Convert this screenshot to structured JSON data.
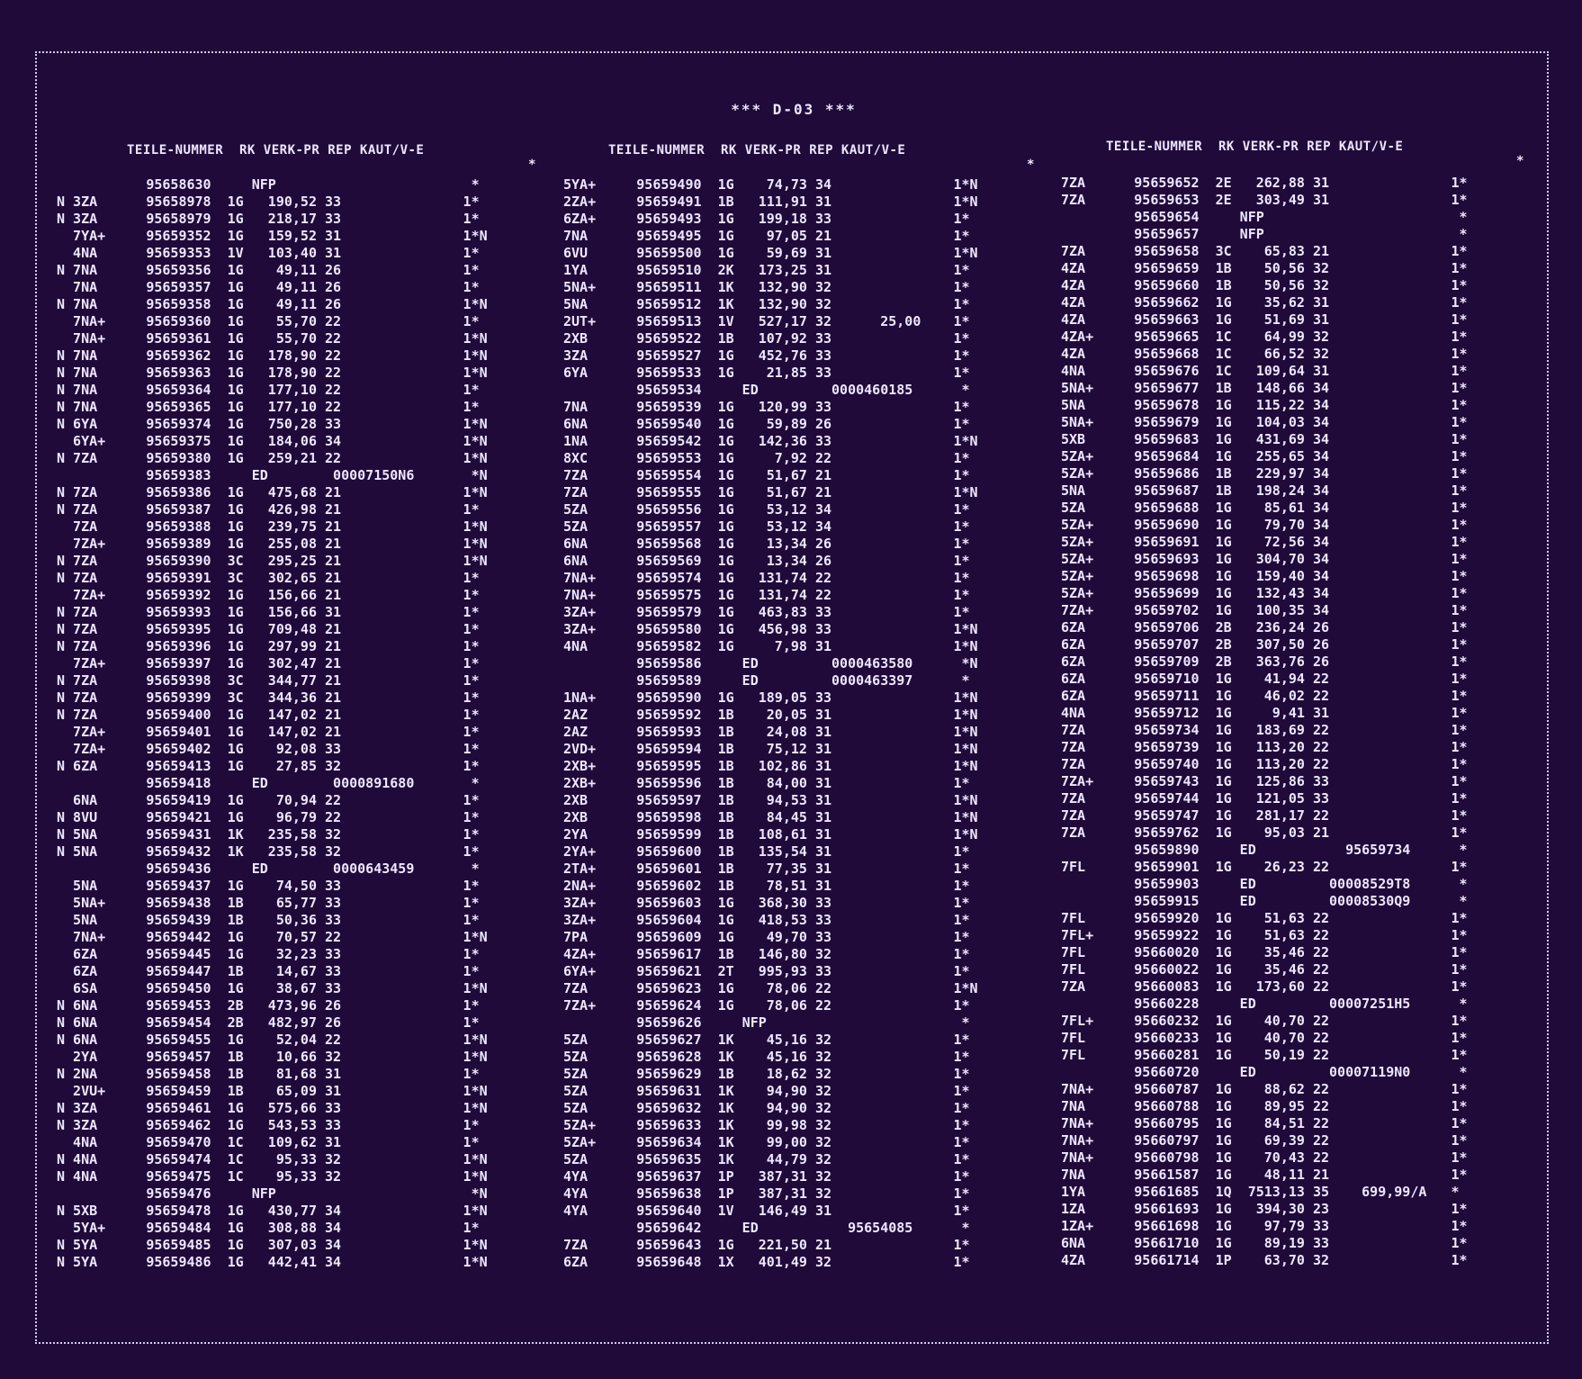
{
  "title": "*** D-03 ***",
  "columns": [
    {
      "header": "TEILE-NUMMER  RK VERK-PR REP KAUT/V-E",
      "header_star": "*",
      "rows": [
        "           95658630     NFP                        *",
        "N 3ZA      95658978  1G   190,52 33               1*",
        "N 3ZA      95658979  1G   218,17 33               1*",
        "  7YA+     95659352  1G   159,52 31               1*N",
        "  4NA      95659353  1V   103,40 31               1*",
        "N 7NA      95659356  1G    49,11 26               1*",
        "  7NA      95659357  1G    49,11 26               1*",
        "N 7NA      95659358  1G    49,11 26               1*N",
        "  7NA+     95659360  1G    55,70 22               1*",
        "  7NA+     95659361  1G    55,70 22               1*N",
        "N 7NA      95659362  1G   178,90 22               1*N",
        "N 7NA      95659363  1G   178,90 22               1*N",
        "N 7NA      95659364  1G   177,10 22               1*",
        "N 7NA      95659365  1G   177,10 22               1*",
        "N 6YA      95659374  1G   750,28 33               1*N",
        "  6YA+     95659375  1G   184,06 34               1*N",
        "N 7ZA      95659380  1G   259,21 22               1*N",
        "           95659383     ED        00007150N6       *N",
        "N 7ZA      95659386  1G   475,68 21               1*N",
        "N 7ZA      95659387  1G   426,98 21               1*",
        "  7ZA      95659388  1G   239,75 21               1*N",
        "  7ZA+     95659389  1G   255,08 21               1*N",
        "N 7ZA      95659390  3C   295,25 21               1*N",
        "N 7ZA      95659391  3C   302,65 21               1*",
        "  7ZA+     95659392  1G   156,66 21               1*",
        "N 7ZA      95659393  1G   156,66 31               1*",
        "N 7ZA      95659395  1G   709,48 21               1*",
        "N 7ZA      95659396  1G   297,99 21               1*",
        "  7ZA+     95659397  1G   302,47 21               1*",
        "N 7ZA      95659398  3C   344,77 21               1*",
        "N 7ZA      95659399  3C   344,36 21               1*",
        "N 7ZA      95659400  1G   147,02 21               1*",
        "  7ZA+     95659401  1G   147,02 21               1*",
        "  7ZA+     95659402  1G    92,08 33               1*",
        "N 6ZA      95659413  1G    27,85 32               1*",
        "           95659418     ED        0000891680       *",
        "  6NA      95659419  1G    70,94 22               1*",
        "N 8VU      95659421  1G    96,79 22               1*",
        "N 5NA      95659431  1K   235,58 32               1*",
        "N 5NA      95659432  1K   235,58 32               1*",
        "           95659436     ED        0000643459       *",
        "  5NA      95659437  1G    74,50 33               1*",
        "  5NA+     95659438  1B    65,77 33               1*",
        "  5NA      95659439  1B    50,36 33               1*",
        "  7NA+     95659442  1G    70,57 22               1*N",
        "  6ZA      95659445  1G    32,23 33               1*",
        "  6ZA      95659447  1B    14,67 33               1*",
        "  6SA      95659450  1G    38,67 33               1*N",
        "N 6NA      95659453  2B   473,96 26               1*",
        "N 6NA      95659454  2B   482,97 26               1*",
        "N 6NA      95659455  1G    52,04 22               1*N",
        "  2YA      95659457  1B    10,66 32               1*N",
        "N 2NA      95659458  1B    81,68 31               1*",
        "  2VU+     95659459  1B    65,09 31               1*N",
        "N 3ZA      95659461  1G   575,66 33               1*N",
        "N 3ZA      95659462  1G   543,53 33               1*",
        "  4NA      95659470  1C   109,62 31               1*",
        "N 4NA      95659474  1C    95,33 32               1*N",
        "N 4NA      95659475  1C    95,33 32               1*N",
        "           95659476     NFP                        *N",
        "N 5XB      95659478  1G   430,77 34               1*N",
        "  5YA+     95659484  1G   308,88 34               1*",
        "N 5YA      95659485  1G   307,03 34               1*N",
        "N 5YA      95659486  1G   442,41 34               1*N"
      ]
    },
    {
      "header": "TEILE-NUMMER  RK VERK-PR REP KAUT/V-E",
      "header_star": "*",
      "rows": [
        "5YA+     95659490  1G    74,73 34               1*N",
        "2ZA+     95659491  1B   111,91 31               1*N",
        "6ZA+     95659493  1G   199,18 33               1*",
        "7NA      95659495  1G    97,05 21               1*",
        "6VU      95659500  1G    59,69 31               1*N",
        "1YA      95659510  2K   173,25 31               1*",
        "5NA+     95659511  1K   132,90 32               1*",
        "5NA      95659512  1K   132,90 32               1*",
        "2UT+     95659513  1V   527,17 32      25,00    1*",
        "2XB      95659522  1B   107,92 33               1*",
        "3ZA      95659527  1G   452,76 33               1*",
        "6YA      95659533  1G    21,85 33               1*",
        "         95659534     ED         0000460185      *",
        "7NA      95659539  1G   120,99 33               1*",
        "6NA      95659540  1G    59,89 26               1*",
        "1NA      95659542  1G   142,36 33               1*N",
        "8XC      95659553  1G     7,92 22               1*",
        "7ZA      95659554  1G    51,67 21               1*",
        "7ZA      95659555  1G    51,67 21               1*N",
        "5ZA      95659556  1G    53,12 34               1*",
        "5ZA      95659557  1G    53,12 34               1*",
        "6NA      95659568  1G    13,34 26               1*",
        "6NA      95659569  1G    13,34 26               1*",
        "7NA+     95659574  1G   131,74 22               1*",
        "7NA+     95659575  1G   131,74 22               1*",
        "3ZA+     95659579  1G   463,83 33               1*",
        "3ZA+     95659580  1G   456,98 33               1*N",
        "4NA      95659582  1G     7,98 31               1*N",
        "         95659586     ED         0000463580      *N",
        "         95659589     ED         0000463397      *",
        "1NA+     95659590  1G   189,05 33               1*N",
        "2AZ      95659592  1B    20,05 31               1*N",
        "2AZ      95659593  1B    24,08 31               1*N",
        "2VD+     95659594  1B    75,12 31               1*N",
        "2XB+     95659595  1B   102,86 31               1*N",
        "2XB+     95659596  1B    84,00 31               1*",
        "2XB      95659597  1B    94,53 31               1*N",
        "2XB      95659598  1B    84,45 31               1*N",
        "2YA      95659599  1B   108,61 31               1*N",
        "2YA+     95659600  1B   135,54 31               1*",
        "2TA+     95659601  1B    77,35 31               1*",
        "2NA+     95659602  1B    78,51 31               1*",
        "3ZA+     95659603  1G   368,30 33               1*",
        "3ZA+     95659604  1G   418,53 33               1*",
        "7PA      95659609  1G    49,70 33               1*",
        "4ZA+     95659617  1B   146,80 32               1*",
        "6YA+     95659621  2T   995,93 33               1*",
        "7ZA      95659623  1G    78,06 22               1*N",
        "7ZA+     95659624  1G    78,06 22               1*",
        "         95659626     NFP                        *",
        "5ZA      95659627  1K    45,16 32               1*",
        "5ZA      95659628  1K    45,16 32               1*",
        "5ZA      95659629  1B    18,62 32               1*",
        "5ZA      95659631  1K    94,90 32               1*",
        "5ZA      95659632  1K    94,90 32               1*",
        "5ZA+     95659633  1K    99,98 32               1*",
        "5ZA+     95659634  1K    99,00 32               1*",
        "5ZA      95659635  1K    44,79 32               1*",
        "4YA      95659637  1P   387,31 32               1*",
        "4YA      95659638  1P   387,31 32               1*",
        "4YA      95659640  1V   146,49 31               1*",
        "         95659642     ED           95654085      *",
        "7ZA      95659643  1G   221,50 21               1*",
        "6ZA      95659648  1X   401,49 32               1*"
      ]
    },
    {
      "header": "TEILE-NUMMER  RK VERK-PR REP KAUT/V-E",
      "header_star": "*",
      "rows": [
        "7ZA      95659652  2E   262,88 31               1*",
        "7ZA      95659653  2E   303,49 31               1*",
        "         95659654     NFP                        *",
        "         95659657     NFP                        *",
        "7ZA      95659658  3C    65,83 21               1*",
        "4ZA      95659659  1B    50,56 32               1*",
        "4ZA      95659660  1B    50,56 32               1*",
        "4ZA      95659662  1G    35,62 31               1*",
        "4ZA      95659663  1G    51,69 31               1*",
        "4ZA+     95659665  1C    64,99 32               1*",
        "4ZA      95659668  1C    66,52 32               1*",
        "4NA      95659676  1C   109,64 31               1*",
        "5NA+     95659677  1B   148,66 34               1*",
        "5NA      95659678  1G   115,22 34               1*",
        "5NA+     95659679  1G   104,03 34               1*",
        "5XB      95659683  1G   431,69 34               1*",
        "5ZA+     95659684  1G   255,65 34               1*",
        "5ZA+     95659686  1B   229,97 34               1*",
        "5NA      95659687  1B   198,24 34               1*",
        "5ZA      95659688  1G    85,61 34               1*",
        "5ZA+     95659690  1G    79,70 34               1*",
        "5ZA+     95659691  1G    72,56 34               1*",
        "5ZA+     95659693  1G   304,70 34               1*",
        "5ZA+     95659698  1G   159,40 34               1*",
        "5ZA+     95659699  1G   132,43 34               1*",
        "7ZA+     95659702  1G   100,35 34               1*",
        "6ZA      95659706  2B   236,24 26               1*",
        "6ZA      95659707  2B   307,50 26               1*",
        "6ZA      95659709  2B   363,76 26               1*",
        "6ZA      95659710  1G    41,94 22               1*",
        "6ZA      95659711  1G    46,02 22               1*",
        "4NA      95659712  1G     9,41 31               1*",
        "7ZA      95659734  1G   183,69 22               1*",
        "7ZA      95659739  1G   113,20 22               1*",
        "7ZA      95659740  1G   113,20 22               1*",
        "7ZA+     95659743  1G   125,86 33               1*",
        "7ZA      95659744  1G   121,05 33               1*",
        "7ZA      95659747  1G   281,17 22               1*",
        "7ZA      95659762  1G    95,03 21               1*",
        "         95659890     ED           95659734      *",
        "7FL      95659901  1G    26,23 22               1*",
        "         95659903     ED         00008529T8      *",
        "         95659915     ED         00008530Q9      *",
        "7FL      95659920  1G    51,63 22               1*",
        "7FL+     95659922  1G    51,63 22               1*",
        "7FL      95660020  1G    35,46 22               1*",
        "7FL      95660022  1G    35,46 22               1*",
        "7ZA      95660083  1G   173,60 22               1*",
        "         95660228     ED         00007251H5      *",
        "7FL+     95660232  1G    40,70 22               1*",
        "7FL      95660233  1G    40,70 22               1*",
        "7FL      95660281  1G    50,19 22               1*",
        "         95660720     ED         00007119N0      *",
        "7NA+     95660787  1G    88,62 22               1*",
        "7NA      95660788  1G    89,95 22               1*",
        "7NA+     95660795  1G    84,51 22               1*",
        "7NA+     95660797  1G    69,39 22               1*",
        "7NA+     95660798  1G    70,43 22               1*",
        "7NA      95661587  1G    48,11 21               1*",
        "1YA      95661685  1Q  7513,13 35    699,99/A   *",
        "1ZA      95661693  1G   394,30 23               1*",
        "1ZA+     95661698  1G    97,79 33               1*",
        "6NA      95661710  1G    89,19 33               1*",
        "4ZA      95661714  1P    63,70 32               1*"
      ]
    }
  ]
}
